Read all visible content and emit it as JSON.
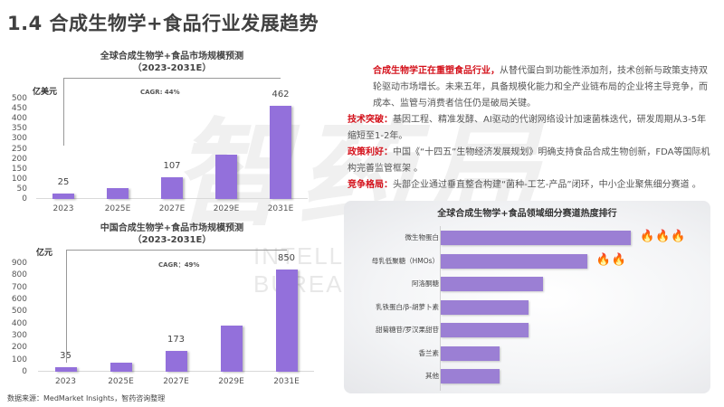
{
  "page": {
    "title": "1.4 合成生物学+食品行业发展趋势",
    "source": "数据来源：MedMarket Insights，智药咨询整理",
    "watermark": {
      "logo": "智药局",
      "subtitle": "INTELLECTUAL MEDICINE BUREAU"
    }
  },
  "colors": {
    "bar": "#9370DB",
    "rank_bar": "#9b7fd4",
    "highlight": "#d4101a",
    "title": "#404040"
  },
  "chart_data": [
    {
      "type": "bar",
      "title": "全球合成生物学+食品市场规模预测",
      "subtitle": "（2023-2031E）",
      "ylabel": "亿美元",
      "categories": [
        "2023",
        "2025E",
        "2027E",
        "2029E",
        "2031E"
      ],
      "values": [
        25,
        52,
        107,
        222,
        462
      ],
      "data_labels": [
        "25",
        "",
        "107",
        "",
        "462"
      ],
      "ylim": [
        0,
        500
      ],
      "yticks": [
        0,
        50,
        100,
        150,
        200,
        250,
        300,
        350,
        400,
        450,
        500
      ],
      "annotation": "CAGR: 44%",
      "grid": false
    },
    {
      "type": "bar",
      "title": "中国合成生物学+食品市场规模预测",
      "subtitle": "（2023-2031E）",
      "ylabel": "亿元",
      "categories": [
        "2023",
        "2025E",
        "2027E",
        "2029E",
        "2031E"
      ],
      "values": [
        35,
        75,
        173,
        380,
        850
      ],
      "data_labels": [
        "35",
        "",
        "173",
        "",
        "850"
      ],
      "ylim": [
        0,
        900
      ],
      "yticks": [
        0,
        100,
        200,
        300,
        400,
        500,
        600,
        700,
        800,
        900
      ],
      "annotation": "CAGR：49%",
      "grid": false
    },
    {
      "type": "bar",
      "orientation": "horizontal",
      "title": "全球合成生物学+食品领域细分赛道热度排行",
      "categories": [
        "微生物蛋白",
        "母乳低聚糖（HMOs）",
        "阿洛酮糖",
        "乳铁蛋白/β-胡萝卜素",
        "甜菊糖苷/罗汉果甜苷",
        "香兰素",
        "其他"
      ],
      "values": [
        100,
        77,
        54,
        46,
        46,
        31,
        31
      ],
      "heat_icons": [
        3,
        2,
        0,
        0,
        0,
        0,
        0
      ],
      "grid": false
    }
  ],
  "text": {
    "intro_highlight": "合成生物学正在重塑食品行业，",
    "intro_body": "从替代蛋白到功能性添加剂，技术创新与政策支持双轮驱动市场增长。未来五年，具备规模化能力和全产业链布局的企业将主导竞争，而成本、监管与消费者信任仍是破局关键。",
    "points": [
      {
        "label": "技术突破：",
        "body": "基因工程、精准发酵、AI驱动的代谢网络设计加速菌株迭代，研发周期从3-5年缩短至1-2年。"
      },
      {
        "label": "政策利好：",
        "body": "中国《“十四五”生物经济发展规划》明确支持食品合成生物创新，FDA等国际机构完善监管框架 。"
      },
      {
        "label": "竞争格局：",
        "body": "头部企业通过垂直整合构建“菌种-工艺-产品”闭环，中小企业聚焦细分赛道 。"
      }
    ]
  },
  "icons": {
    "heat": "fire-icon",
    "fire_glyph": "🔥"
  }
}
